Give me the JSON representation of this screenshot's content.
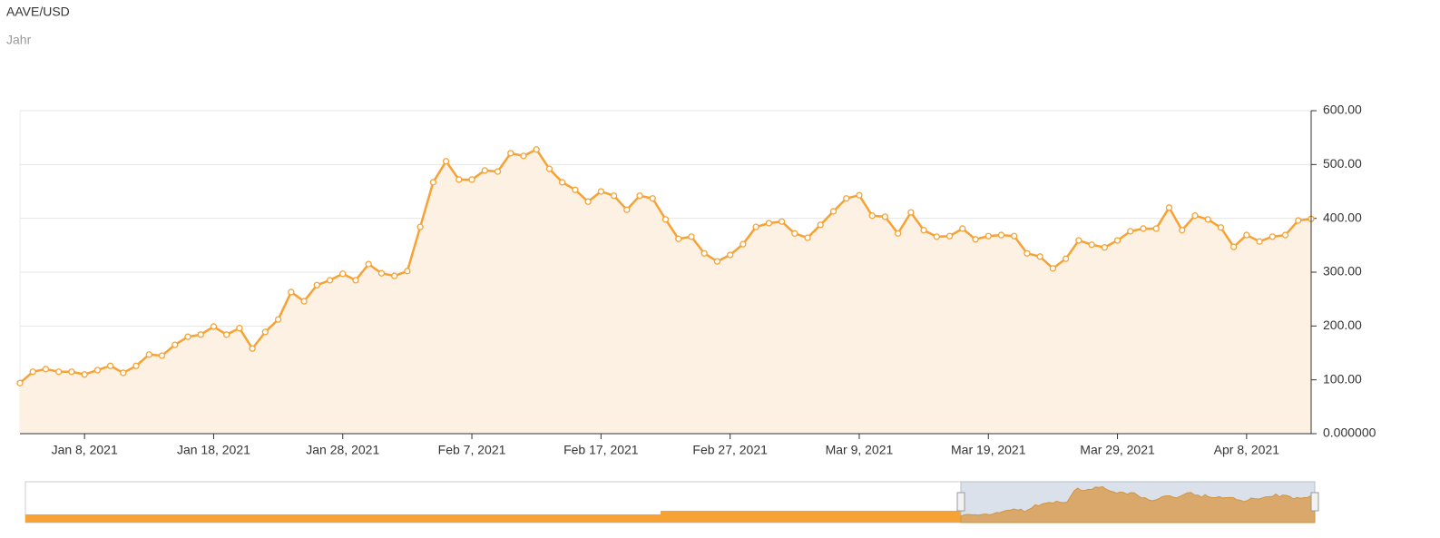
{
  "chart_data": {
    "type": "area",
    "title": "AAVE/USD",
    "subtitle": "Jahr",
    "x": [
      "2021-01-03",
      "2021-01-04",
      "2021-01-05",
      "2021-01-06",
      "2021-01-07",
      "2021-01-08",
      "2021-01-09",
      "2021-01-10",
      "2021-01-11",
      "2021-01-12",
      "2021-01-13",
      "2021-01-14",
      "2021-01-15",
      "2021-01-16",
      "2021-01-17",
      "2021-01-18",
      "2021-01-19",
      "2021-01-20",
      "2021-01-21",
      "2021-01-22",
      "2021-01-23",
      "2021-01-24",
      "2021-01-25",
      "2021-01-26",
      "2021-01-27",
      "2021-01-28",
      "2021-01-29",
      "2021-01-30",
      "2021-01-31",
      "2021-02-01",
      "2021-02-02",
      "2021-02-03",
      "2021-02-04",
      "2021-02-05",
      "2021-02-06",
      "2021-02-07",
      "2021-02-08",
      "2021-02-09",
      "2021-02-10",
      "2021-02-11",
      "2021-02-12",
      "2021-02-13",
      "2021-02-14",
      "2021-02-15",
      "2021-02-16",
      "2021-02-17",
      "2021-02-18",
      "2021-02-19",
      "2021-02-20",
      "2021-02-21",
      "2021-02-22",
      "2021-02-23",
      "2021-02-24",
      "2021-02-25",
      "2021-02-26",
      "2021-02-27",
      "2021-02-28",
      "2021-03-01",
      "2021-03-02",
      "2021-03-03",
      "2021-03-04",
      "2021-03-05",
      "2021-03-06",
      "2021-03-07",
      "2021-03-08",
      "2021-03-09",
      "2021-03-10",
      "2021-03-11",
      "2021-03-12",
      "2021-03-13",
      "2021-03-14",
      "2021-03-15",
      "2021-03-16",
      "2021-03-17",
      "2021-03-18",
      "2021-03-19",
      "2021-03-20",
      "2021-03-21",
      "2021-03-22",
      "2021-03-23",
      "2021-03-24",
      "2021-03-25",
      "2021-03-26",
      "2021-03-27",
      "2021-03-28",
      "2021-03-29",
      "2021-03-30",
      "2021-03-31",
      "2021-04-01",
      "2021-04-02",
      "2021-04-03",
      "2021-04-04",
      "2021-04-05",
      "2021-04-06",
      "2021-04-07",
      "2021-04-08",
      "2021-04-09",
      "2021-04-10",
      "2021-04-11",
      "2021-04-12",
      "2021-04-13"
    ],
    "series": [
      {
        "name": "AAVE/USD",
        "color": "#f7a234",
        "area_color": "#fdf1e3",
        "values": [
          94,
          115,
          120,
          115,
          115,
          110,
          118,
          126,
          113,
          126,
          147,
          145,
          165,
          180,
          184,
          199,
          184,
          196,
          158,
          189,
          212,
          263,
          246,
          276,
          285,
          297,
          285,
          315,
          298,
          293,
          302,
          384,
          467,
          506,
          472,
          472,
          489,
          487,
          521,
          516,
          528,
          492,
          467,
          453,
          431,
          450,
          442,
          416,
          442,
          437,
          398,
          362,
          366,
          335,
          320,
          332,
          352,
          384,
          391,
          394,
          372,
          364,
          388,
          413,
          437,
          443,
          405,
          403,
          372,
          411,
          378,
          366,
          367,
          381,
          361,
          367,
          369,
          367,
          335,
          329,
          307,
          325,
          359,
          351,
          346,
          359,
          376,
          381,
          381,
          420,
          378,
          405,
          398,
          383,
          347,
          369,
          357,
          366,
          369,
          396,
          399
        ]
      }
    ],
    "xlim": [
      "2021-01-03",
      "2021-04-13"
    ],
    "xticks": [
      {
        "value": "2021-01-08",
        "label": "Jan 8, 2021"
      },
      {
        "value": "2021-01-18",
        "label": "Jan 18, 2021"
      },
      {
        "value": "2021-01-28",
        "label": "Jan 28, 2021"
      },
      {
        "value": "2021-02-07",
        "label": "Feb 7, 2021"
      },
      {
        "value": "2021-02-17",
        "label": "Feb 17, 2021"
      },
      {
        "value": "2021-02-27",
        "label": "Feb 27, 2021"
      },
      {
        "value": "2021-03-09",
        "label": "Mar 9, 2021"
      },
      {
        "value": "2021-03-19",
        "label": "Mar 19, 2021"
      },
      {
        "value": "2021-03-29",
        "label": "Mar 29, 2021"
      },
      {
        "value": "2021-04-08",
        "label": "Apr 8, 2021"
      }
    ],
    "ylim": [
      0,
      600
    ],
    "yticks": [
      {
        "value": 0,
        "label": "0.000000"
      },
      {
        "value": 100,
        "label": "100.00"
      },
      {
        "value": 200,
        "label": "200.00"
      },
      {
        "value": 300,
        "label": "300.00"
      },
      {
        "value": 400,
        "label": "400.00"
      },
      {
        "value": 500,
        "label": "500.00"
      },
      {
        "value": 600,
        "label": "600.00"
      }
    ],
    "grid": true
  }
}
